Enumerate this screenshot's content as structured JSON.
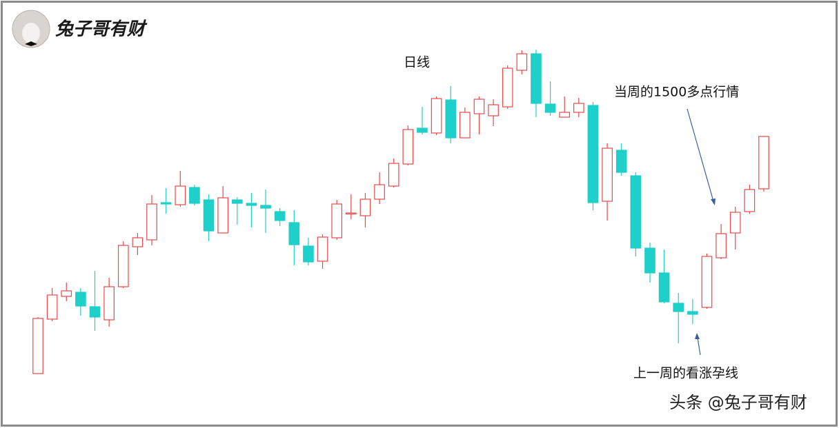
{
  "chart_data": {
    "type": "candlestick",
    "logo_text": "兔子哥有财",
    "annotations": [
      "日线",
      "当周的1500多点行情",
      "上一周的看涨孕线"
    ],
    "watermark": "头条 @兔子哥有财",
    "up_color": "#e8484a",
    "down_color": "#1fcfc9",
    "ylim": [
      0,
      620
    ],
    "open": [
      78,
      157,
      190,
      196,
      175,
      156,
      204,
      262,
      272,
      326,
      323,
      348,
      330,
      282,
      330,
      325,
      322,
      313,
      297,
      263,
      241,
      275,
      310,
      307,
      331,
      350,
      382,
      434,
      427,
      475,
      420,
      455,
      452,
      465,
      518,
      542,
      469,
      450,
      457,
      467,
      328,
      402,
      365,
      260,
      224,
      180,
      168,
      174,
      246,
      282,
      313,
      346
    ],
    "high": [
      160,
      202,
      210,
      202,
      227,
      217,
      270,
      282,
      337,
      347,
      372,
      352,
      338,
      350,
      334,
      340,
      345,
      318,
      315,
      275,
      280,
      330,
      338,
      340,
      370,
      390,
      438,
      465,
      480,
      495,
      464,
      480,
      476,
      525,
      547,
      548,
      502,
      480,
      478,
      472,
      412,
      412,
      370,
      268,
      258,
      195,
      186,
      252,
      295,
      320,
      352,
      422
    ],
    "low": [
      78,
      154,
      183,
      162,
      140,
      146,
      202,
      250,
      264,
      310,
      320,
      322,
      270,
      282,
      294,
      290,
      282,
      292,
      235,
      235,
      230,
      272,
      302,
      290,
      324,
      348,
      380,
      425,
      424,
      412,
      420,
      425,
      437,
      462,
      512,
      450,
      452,
      450,
      450,
      315,
      300,
      365,
      248,
      210,
      180,
      122,
      150,
      172,
      244,
      258,
      310,
      342
    ],
    "close": [
      158,
      192,
      198,
      176,
      160,
      204,
      264,
      275,
      324,
      324,
      350,
      325,
      285,
      333,
      325,
      322,
      318,
      300,
      265,
      240,
      276,
      324,
      311,
      331,
      352,
      383,
      432,
      428,
      477,
      420,
      457,
      476,
      468,
      521,
      542,
      470,
      457,
      457,
      470,
      326,
      405,
      370,
      260,
      224,
      182,
      168,
      164,
      248,
      281,
      312,
      345,
      422
    ]
  }
}
